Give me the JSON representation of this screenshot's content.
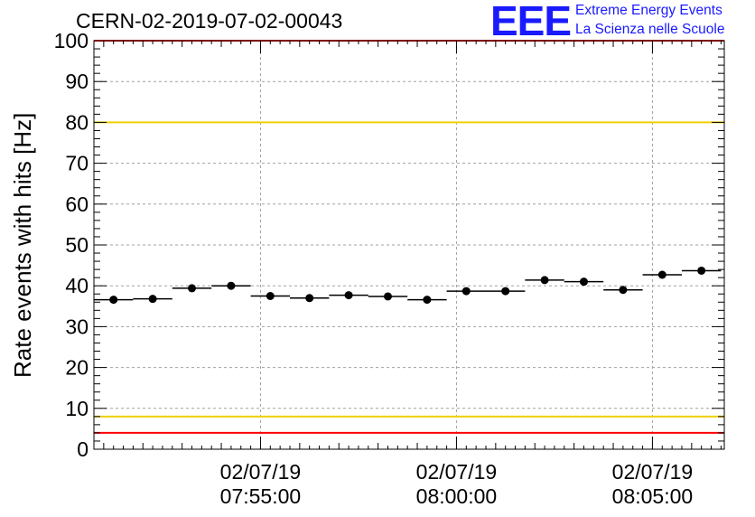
{
  "header": {
    "title": "CERN-02-2019-07-02-00043",
    "logo_text": "EEE",
    "logo_line1": "Extreme Energy Events",
    "logo_line2": "La Scienza nelle Scuole"
  },
  "colors": {
    "points": "#000000",
    "red_limit": "#ff0000",
    "yellow_limit": "#f0d000",
    "grid": "#a0a0a0",
    "logo": "#1a1aff"
  },
  "chart_data": {
    "type": "scatter",
    "title": "CERN-02-2019-07-02-00043",
    "xlabel": "",
    "ylabel": "Rate events with hits [Hz]",
    "ylim": [
      0,
      100
    ],
    "xlim": [
      "2019-07-02 07:50:45",
      "2019-07-02 08:06:50"
    ],
    "yticks": [
      0,
      10,
      20,
      30,
      40,
      50,
      60,
      70,
      80,
      90,
      100
    ],
    "xticks": [
      {
        "time": "2019-07-02 07:55:00",
        "date_label": "02/07/19",
        "time_label": "07:55:00"
      },
      {
        "time": "2019-07-02 08:00:00",
        "date_label": "02/07/19",
        "time_label": "08:00:00"
      },
      {
        "time": "2019-07-02 08:05:00",
        "date_label": "02/07/19",
        "time_label": "08:05:00"
      }
    ],
    "grid": true,
    "bin_width_seconds": 60,
    "series": [
      {
        "x": [
          "2019-07-02 07:51:15",
          "2019-07-02 07:52:15",
          "2019-07-02 07:53:15",
          "2019-07-02 07:54:15",
          "2019-07-02 07:55:15",
          "2019-07-02 07:56:15",
          "2019-07-02 07:57:15",
          "2019-07-02 07:58:15",
          "2019-07-02 07:59:15",
          "2019-07-02 08:00:15",
          "2019-07-02 08:01:15",
          "2019-07-02 08:02:15",
          "2019-07-02 08:03:15",
          "2019-07-02 08:04:15",
          "2019-07-02 08:05:15",
          "2019-07-02 08:06:15"
        ],
        "y": [
          36.6,
          36.8,
          39.4,
          40.0,
          37.5,
          37.0,
          37.7,
          37.4,
          36.6,
          38.7,
          38.7,
          41.4,
          41.0,
          39.0,
          42.7,
          43.7
        ]
      }
    ],
    "reference_lines": [
      {
        "y": 100,
        "color": "#ff0000"
      },
      {
        "y": 80,
        "color": "#f0d000"
      },
      {
        "y": 8,
        "color": "#f0d000"
      },
      {
        "y": 4,
        "color": "#ff0000"
      }
    ]
  }
}
